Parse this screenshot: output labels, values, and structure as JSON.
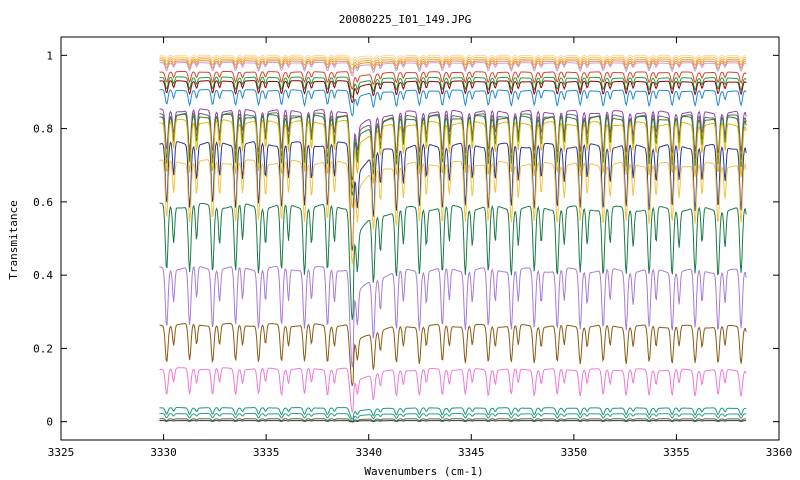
{
  "chart_data": {
    "type": "line",
    "title": "20080225_I01_149.JPG",
    "xlabel": "Wavenumbers (cm-1)",
    "ylabel": "Transmitance",
    "xlim": [
      3325,
      3360
    ],
    "ylim": [
      -0.05,
      1.05
    ],
    "xticks": [
      3325,
      3330,
      3335,
      3340,
      3345,
      3350,
      3355,
      3360
    ],
    "xtick_labels": [
      "3325",
      "3330",
      "3335",
      "3340",
      "3345",
      "3350",
      "3355",
      "3360"
    ],
    "yticks": [
      0,
      0.2,
      0.4,
      0.6,
      0.8,
      1
    ],
    "ytick_labels": [
      "0",
      "0.2",
      "0.4",
      "0.6",
      "0.8",
      "1"
    ],
    "grid": false,
    "legend": "none",
    "x_range_data": [
      3329.8,
      3358.4
    ],
    "strong_absorption_at": 3339.2,
    "series": [
      {
        "color": "#fdd9a0",
        "baseline": 1.0,
        "depth": 0.008
      },
      {
        "color": "#f8c36a",
        "baseline": 0.995,
        "depth": 0.012
      },
      {
        "color": "#f4a742",
        "baseline": 0.99,
        "depth": 0.016
      },
      {
        "color": "#e8922b",
        "baseline": 0.985,
        "depth": 0.02
      },
      {
        "color": "#c9a0dc",
        "baseline": 0.98,
        "depth": 0.022
      },
      {
        "color": "#d9442c",
        "baseline": 0.955,
        "depth": 0.028
      },
      {
        "color": "#1f9e3a",
        "baseline": 0.94,
        "depth": 0.032
      },
      {
        "color": "#8b0000",
        "baseline": 0.93,
        "depth": 0.034
      },
      {
        "color": "#1e88d8",
        "baseline": 0.905,
        "depth": 0.04
      },
      {
        "color": "#8e44ad",
        "baseline": 0.85,
        "depth": 0.11
      },
      {
        "color": "#6b6b6b",
        "baseline": 0.84,
        "depth": 0.12
      },
      {
        "color": "#2e7d32",
        "baseline": 0.835,
        "depth": 0.13
      },
      {
        "color": "#e8b800",
        "baseline": 0.82,
        "depth": 0.14
      },
      {
        "color": "#283593",
        "baseline": 0.76,
        "depth": 0.17
      },
      {
        "color": "#f5c242",
        "baseline": 0.71,
        "depth": 0.16
      },
      {
        "color": "#1b7a48",
        "baseline": 0.59,
        "depth": 0.18
      },
      {
        "color": "#a67cd8",
        "baseline": 0.42,
        "depth": 0.16
      },
      {
        "color": "#8b5a14",
        "baseline": 0.265,
        "depth": 0.1
      },
      {
        "color": "#ee7ad8",
        "baseline": 0.145,
        "depth": 0.07
      },
      {
        "color": "#179c7a",
        "baseline": 0.038,
        "depth": 0.018
      },
      {
        "color": "#2a9d8f",
        "baseline": 0.022,
        "depth": 0.012
      },
      {
        "color": "#556b2f",
        "baseline": 0.008,
        "depth": 0.005
      },
      {
        "color": "#333333",
        "baseline": 0.003,
        "depth": 0.002
      }
    ]
  }
}
